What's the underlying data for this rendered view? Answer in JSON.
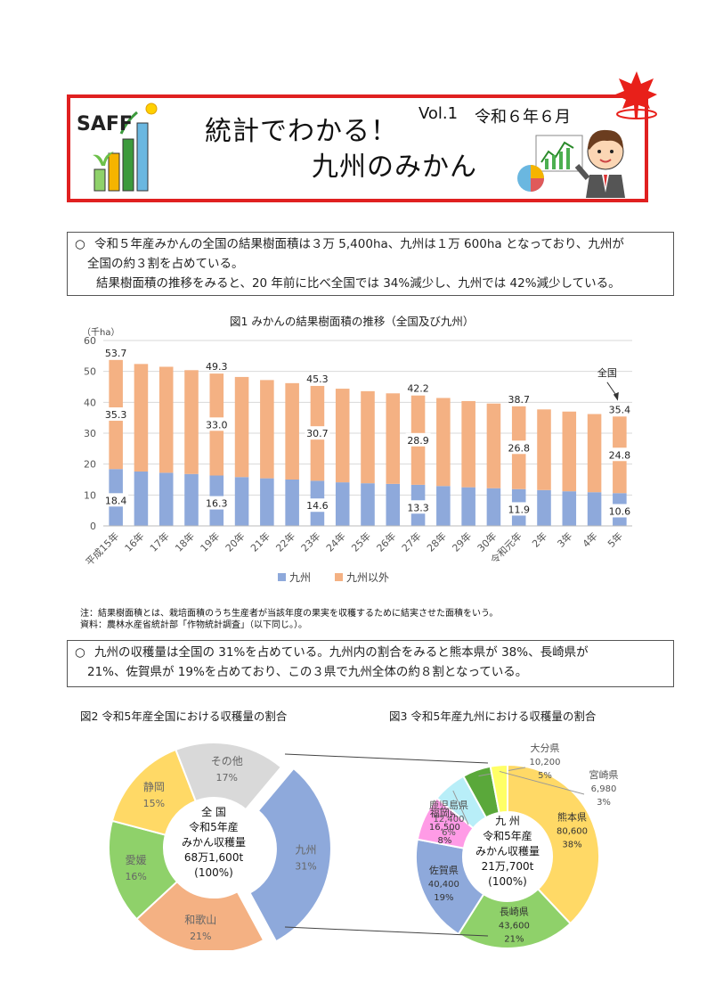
{
  "header": {
    "logo_text": "SAFF",
    "title_line1": "統計でわかる！",
    "title_line2": "九州のみかん",
    "vol": "Vol.1",
    "date": "令和６年６月"
  },
  "section1": {
    "bullet": "○",
    "line1": "令和５年産みかんの全国の結果樹面積は３万 5,400ha、九州は１万 600ha となっており、九州が",
    "line2": "全国の約３割を占めている。",
    "line3": "結果樹面積の推移をみると、20 年前に比べ全国では 34%減少し、九州では 42%減少している。"
  },
  "fig1": {
    "title": "図1 みかんの結果樹面積の推移（全国及び九州）",
    "unit": "（千ha）",
    "nation_label": "全国",
    "legend": [
      "九州",
      "九州以外"
    ]
  },
  "chart_data": {
    "type": "bar",
    "stacked": true,
    "categories": [
      "平成15年",
      "16年",
      "17年",
      "18年",
      "19年",
      "20年",
      "21年",
      "22年",
      "23年",
      "24年",
      "25年",
      "26年",
      "27年",
      "28年",
      "29年",
      "30年",
      "令和元年",
      "2年",
      "3年",
      "4年",
      "5年"
    ],
    "series": [
      {
        "name": "九州",
        "color": "#8ea9db",
        "values": [
          18.4,
          17.6,
          17.2,
          16.8,
          16.3,
          15.8,
          15.4,
          15.0,
          14.6,
          14.1,
          13.8,
          13.6,
          13.3,
          12.9,
          12.5,
          12.2,
          11.9,
          11.6,
          11.2,
          10.9,
          10.6
        ]
      },
      {
        "name": "九州以外",
        "color": "#f4b183",
        "values": [
          35.3,
          34.8,
          34.3,
          33.6,
          33.0,
          32.4,
          31.8,
          31.2,
          30.7,
          30.3,
          29.8,
          29.3,
          28.9,
          28.5,
          27.9,
          27.4,
          26.8,
          26.1,
          25.8,
          25.3,
          24.8
        ]
      }
    ],
    "totals_labels": {
      "0": "53.7",
      "4": "49.3",
      "8": "45.3",
      "12": "42.2",
      "16": "38.7",
      "20": "35.4"
    },
    "ylim": [
      0,
      60
    ],
    "yticks": [
      0,
      10,
      20,
      30,
      40,
      50,
      60
    ],
    "grid": true,
    "legend_position": "bottom"
  },
  "notes": {
    "note": "注：結果樹面積とは、栽培面積のうち生産者が当該年度の果実を収穫するために結実させた面積をいう。",
    "source": "資料：農林水産省統計部「作物統計調査」（以下同じ。）。"
  },
  "section2": {
    "bullet": "○",
    "line1": "九州の収穫量は全国の 31%を占めている。九州内の割合をみると熊本県が 38%、長崎県が",
    "line2": "21%、佐賀県が 19%を占めており、この３県で九州全体の約８割となっている。"
  },
  "fig2": {
    "title": "図2 令和5年産全国における収穫量の割合",
    "center": [
      "全 国",
      "令和5年産",
      "みかん収穫量",
      "68万1,600t",
      "(100%)"
    ],
    "slices": [
      {
        "name": "九州",
        "pct": "31%",
        "value": 31,
        "color": "#8ea9db"
      },
      {
        "name": "和歌山",
        "pct": "21%",
        "value": 21,
        "color": "#f4b183"
      },
      {
        "name": "愛媛",
        "pct": "16%",
        "value": 16,
        "color": "#8fd16a"
      },
      {
        "name": "静岡",
        "pct": "15%",
        "value": 15,
        "color": "#ffd966"
      },
      {
        "name": "その他",
        "pct": "17%",
        "value": 17,
        "color": "#d9d9d9"
      }
    ]
  },
  "fig3": {
    "title": "図3 令和5年産九州における収穫量の割合",
    "center": [
      "九 州",
      "令和5年産",
      "みかん収穫量",
      "21万,700t",
      "(100%)"
    ],
    "slices": [
      {
        "name": "熊本県",
        "amount": "80,600",
        "pct": "38%",
        "value": 38,
        "color": "#ffd966"
      },
      {
        "name": "長崎県",
        "amount": "43,600",
        "pct": "21%",
        "value": 21,
        "color": "#8fd16a"
      },
      {
        "name": "佐賀県",
        "amount": "40,400",
        "pct": "19%",
        "value": 19,
        "color": "#8ea9db"
      },
      {
        "name": "福岡県",
        "amount": "16,500",
        "pct": "8%",
        "value": 8,
        "color": "#ff9be6"
      },
      {
        "name": "鹿児島県",
        "amount": "12,400",
        "pct": "6%",
        "value": 6,
        "color": "#b8eef8"
      },
      {
        "name": "大分県",
        "amount": "10,200",
        "pct": "5%",
        "value": 5,
        "color": "#5aa83a"
      },
      {
        "name": "宮崎県",
        "amount": "6,980",
        "pct": "3%",
        "value": 3,
        "color": "#ffff66"
      }
    ]
  }
}
